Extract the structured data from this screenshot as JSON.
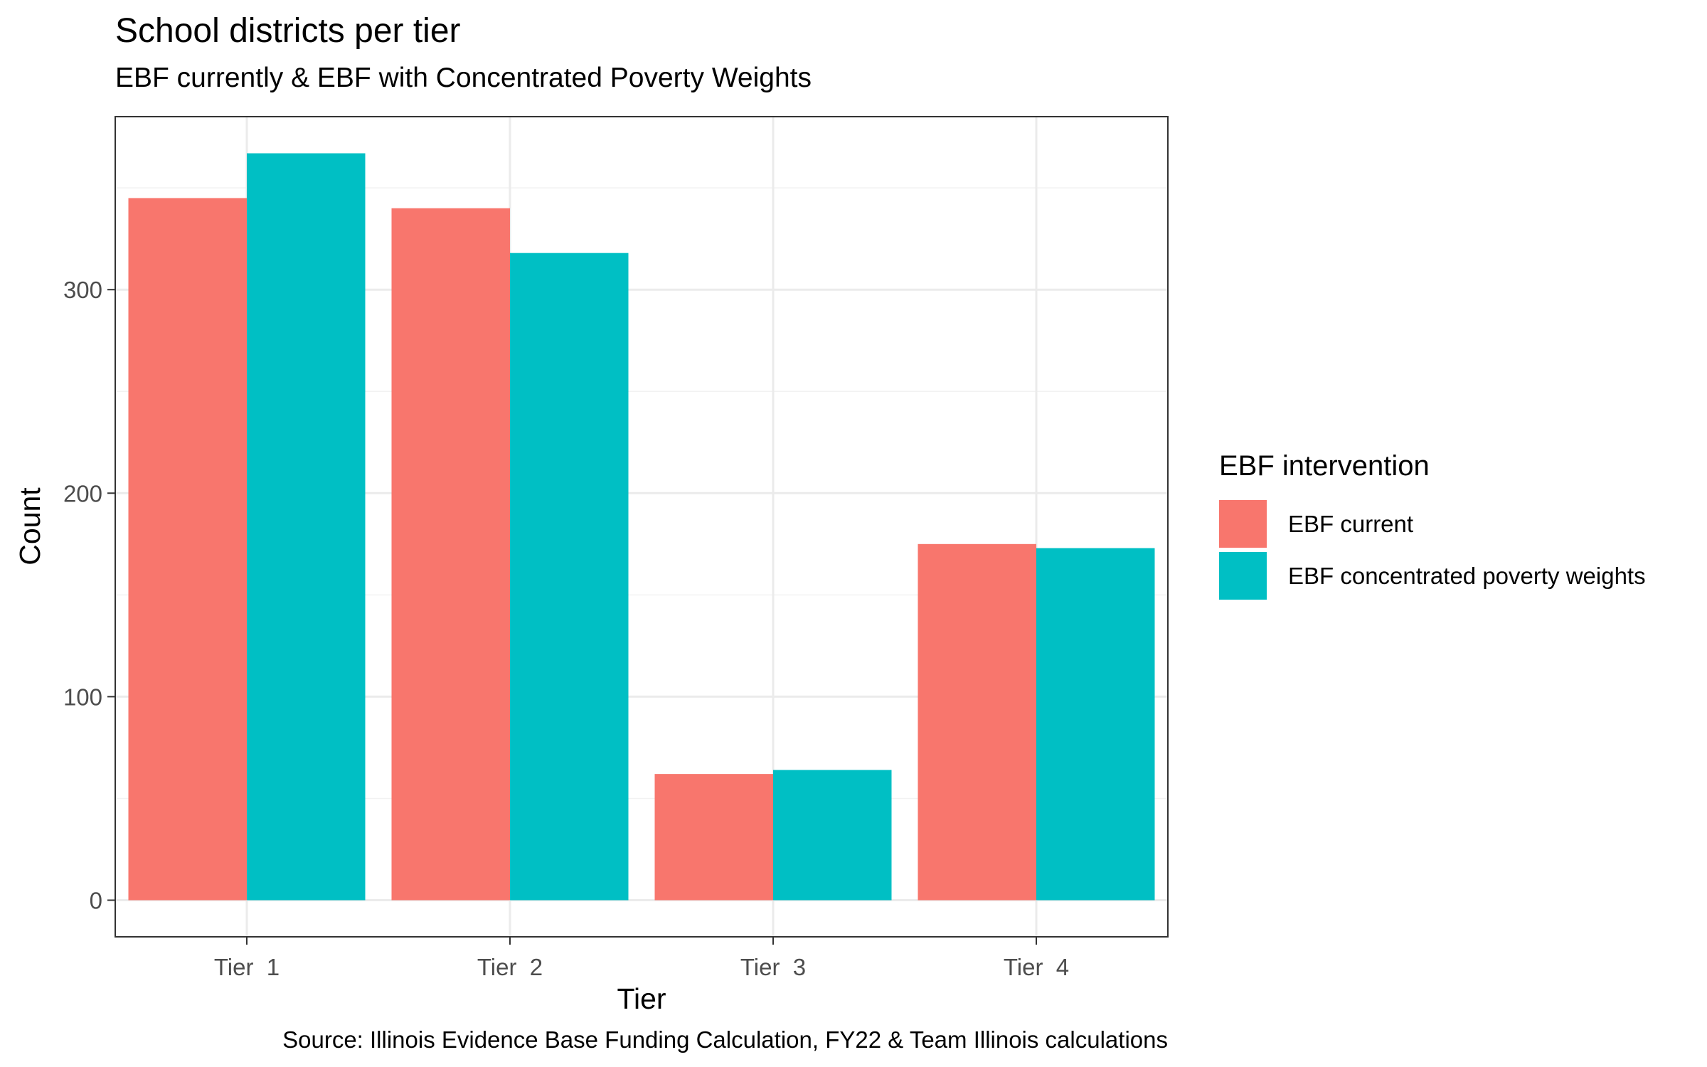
{
  "title": "School districts per tier",
  "subtitle": "EBF currently & EBF with Concentrated Poverty Weights",
  "caption": "Source: Illinois Evidence Base Funding Calculation, FY22 & Team Illinois calculations",
  "legend": {
    "title": "EBF intervention",
    "placement": "right",
    "items": [
      {
        "label": "EBF current",
        "color": "#F8766D"
      },
      {
        "label": "EBF concentrated poverty weights",
        "color": "#00BFC4"
      }
    ]
  },
  "chart_data": {
    "type": "bar",
    "xlabel": "Tier",
    "ylabel": "Count",
    "categories": [
      "Tier  1",
      "Tier  2",
      "Tier  3",
      "Tier  4"
    ],
    "series": [
      {
        "name": "EBF current",
        "color": "#F8766D",
        "values": [
          345,
          340,
          62,
          175
        ]
      },
      {
        "name": "EBF concentrated poverty weights",
        "color": "#00BFC4",
        "values": [
          367,
          318,
          64,
          173
        ]
      }
    ],
    "yticks": [
      0,
      100,
      200,
      300
    ],
    "ylim": [
      -18,
      385
    ],
    "grid": true,
    "legend_position": "right"
  }
}
